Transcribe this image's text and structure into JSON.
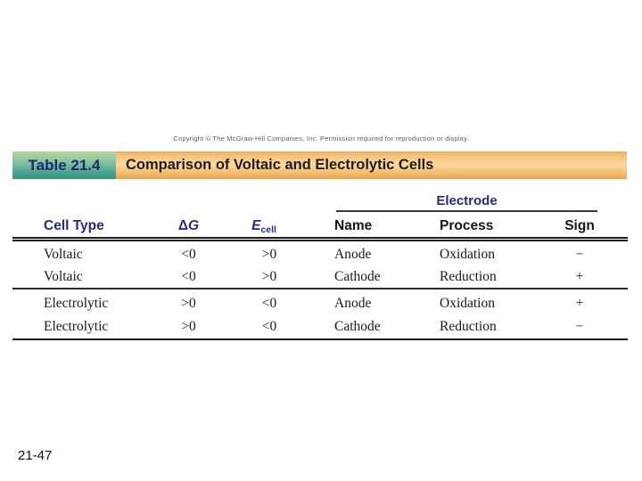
{
  "slide": {
    "copyright": "Copyright © The McGraw-Hill Companies, Inc. Permission required for reproduction or display.",
    "page_number": "21-47"
  },
  "table": {
    "label": "Table 21.4",
    "title": "Comparison of Voltaic and Electrolytic Cells",
    "electrode_header": "Electrode",
    "header": {
      "cell_type": "Cell Type",
      "delta_g": {
        "delta": "Δ",
        "g": "G"
      },
      "e_cell": {
        "base": "E",
        "subscript": "cell"
      },
      "name": "Name",
      "process": "Process",
      "sign": "Sign"
    },
    "rows": [
      [
        "Voltaic",
        "<0",
        ">0",
        "Anode",
        "Oxidation",
        "−"
      ],
      [
        "Voltaic",
        "<0",
        ">0",
        "Cathode",
        "Reduction",
        "+"
      ],
      [
        "Electrolytic",
        ">0",
        "<0",
        "Anode",
        "Oxidation",
        "+"
      ],
      [
        "Electrolytic",
        ">0",
        "<0",
        "Cathode",
        "Reduction",
        "−"
      ]
    ]
  },
  "colors": {
    "header_navy": "#252e7b",
    "teal_badge_top": "#b7d8a6",
    "teal_badge_bottom": "#35917f",
    "orange_bar_top": "#edb25c",
    "orange_bar_mid": "#fbd79b",
    "orange_bar_bottom": "#e6a54a",
    "body_text": "#191919",
    "rule": "#1a1a1a"
  }
}
